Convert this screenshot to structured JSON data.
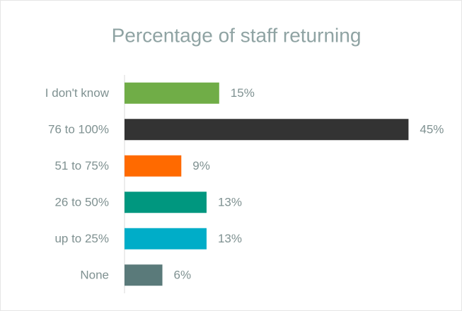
{
  "chart_data": {
    "type": "bar",
    "orientation": "horizontal",
    "title": "Percentage of staff returning",
    "categories": [
      "I don't know",
      "76 to 100%",
      "51 to 75%",
      "26 to 50%",
      "up to 25%",
      "None"
    ],
    "values": [
      15,
      45,
      9,
      13,
      13,
      6
    ],
    "value_labels": [
      "15%",
      "45%",
      "9%",
      "13%",
      "13%",
      "6%"
    ],
    "colors": [
      "#70ad47",
      "#333333",
      "#ff6a00",
      "#00977f",
      "#00adc8",
      "#5a7a7a"
    ],
    "xlim": [
      0,
      50
    ]
  }
}
